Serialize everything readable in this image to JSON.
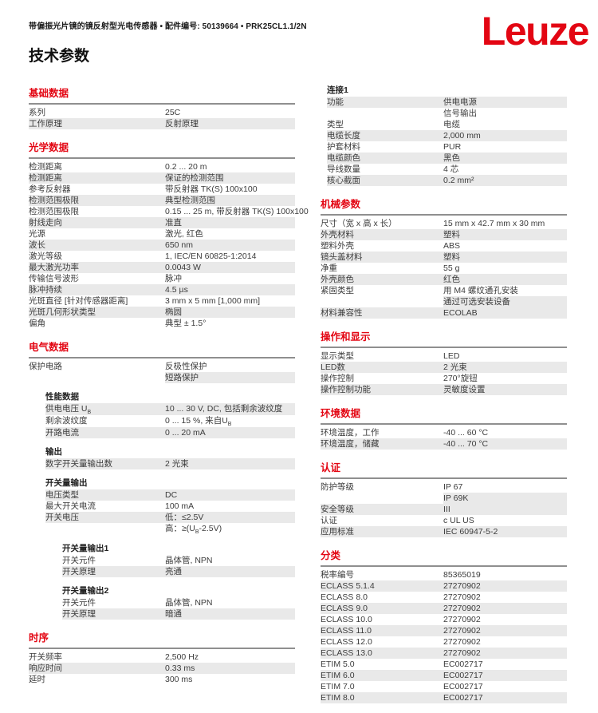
{
  "page": {
    "meta_line": "带偏振光片镜的镜反射型光电传感器 • 配件编号: 50139664 • PRK25CL1.1/2N",
    "title": "技术参数",
    "logo": "Leuze",
    "colors": {
      "brand_red": "#e30613",
      "row_shade": "#e9e9e9",
      "rule_gray": "#8f8f8f",
      "text": "#3c3c3c"
    }
  },
  "columns": {
    "left": [
      {
        "title": "基础数据",
        "rows": [
          {
            "label": "系列",
            "value": "25C",
            "shade": "none"
          },
          {
            "label": "工作原理",
            "value": "反射原理",
            "shade": "full"
          }
        ]
      },
      {
        "title": "光学数据",
        "rows": [
          {
            "label": "检测距离",
            "value": "0.2 ... 20 m",
            "shade": "none"
          },
          {
            "label": "检测距离",
            "value": "保证的检测范围",
            "shade": "full"
          },
          {
            "label": "参考反射器",
            "value": "带反射器 TK(S) 100x100",
            "shade": "none"
          },
          {
            "label": "检测范围极限",
            "value": "典型检测范围",
            "shade": "full"
          },
          {
            "label": "检测范围极限",
            "value": "0.15 ... 25 m, 带反射器 TK(S) 100x100",
            "shade": "none"
          },
          {
            "label": "射线走向",
            "value": "准直",
            "shade": "full"
          },
          {
            "label": "光源",
            "value": "激光, 红色",
            "shade": "none"
          },
          {
            "label": "波长",
            "value": "650 nm",
            "shade": "full"
          },
          {
            "label": "激光等级",
            "value": "1, IEC/EN 60825-1:2014",
            "shade": "none"
          },
          {
            "label": "最大激光功率",
            "value": "0.0043 W",
            "shade": "full"
          },
          {
            "label": "传输信号波形",
            "value": "脉冲",
            "shade": "none"
          },
          {
            "label": "脉冲持续",
            "value": "4.5 µs",
            "shade": "full"
          },
          {
            "label": "光斑直径 [针对传感器距离]",
            "value": "3 mm x 5 mm [1,000 mm]",
            "shade": "none"
          },
          {
            "label": "光斑几何形状类型",
            "value": "椭圆",
            "shade": "full"
          },
          {
            "label": "偏角",
            "value": "典型 ± 1.5°",
            "shade": "none"
          }
        ]
      },
      {
        "title": "电气数据",
        "rows": [
          {
            "label": "保护电路",
            "value": "反极性保护",
            "shade": "none"
          },
          {
            "label": "",
            "value": "短路保护",
            "shade": "value"
          },
          {
            "sub": "性能数据",
            "indent": 1
          },
          {
            "label": "供电电压 U~B~",
            "value": "10 ... 30 V, DC, 包括剩余波纹度",
            "shade": "full",
            "indent": 1
          },
          {
            "label": "剩余波纹度",
            "value": "0 ... 15 %, 来自U~B~",
            "shade": "none",
            "indent": 1
          },
          {
            "label": "开路电流",
            "value": "0 ... 20 mA",
            "shade": "full",
            "indent": 1
          },
          {
            "sub": "输出",
            "indent": 1
          },
          {
            "label": "数字开关量输出数",
            "value": "2 光束",
            "shade": "full",
            "indent": 1
          },
          {
            "sub": "开关量输出",
            "indent": 1
          },
          {
            "label": "电压类型",
            "value": "DC",
            "shade": "full",
            "indent": 1
          },
          {
            "label": "最大开关电流",
            "value": "100 mA",
            "shade": "none",
            "indent": 1
          },
          {
            "label": "开关电压",
            "value": "低：≤2.5V",
            "shade": "full",
            "indent": 1
          },
          {
            "label": "",
            "value": "高：≥(U~B~-2.5V)",
            "shade": "none"
          },
          {
            "sub": "开关量输出1",
            "indent": 2
          },
          {
            "label": "开关元件",
            "value": "晶体管, NPN",
            "shade": "none",
            "indent": 2
          },
          {
            "label": "开关原理",
            "value": "亮通",
            "shade": "full",
            "indent": 2
          },
          {
            "sub": "开关量输出2",
            "indent": 2
          },
          {
            "label": "开关元件",
            "value": "晶体管, NPN",
            "shade": "none",
            "indent": 2
          },
          {
            "label": "开关原理",
            "value": "暗通",
            "shade": "full",
            "indent": 2
          }
        ]
      },
      {
        "title": "时序",
        "rows": [
          {
            "label": "开关频率",
            "value": "2,500 Hz",
            "shade": "none"
          },
          {
            "label": "响应时间",
            "value": "0.33 ms",
            "shade": "full"
          },
          {
            "label": "延时",
            "value": "300 ms",
            "shade": "none"
          }
        ]
      }
    ],
    "right": [
      {
        "title": null,
        "rows": [
          {
            "sub": "连接1",
            "indent": 1
          },
          {
            "label": "功能",
            "value": "供电电源",
            "shade": "full",
            "indent": 1
          },
          {
            "label": "",
            "value": "信号输出",
            "shade": "none"
          },
          {
            "label": "类型",
            "value": "电缆",
            "shade": "none",
            "indent": 1
          },
          {
            "label": "电缆长度",
            "value": "2,000 mm",
            "shade": "full",
            "indent": 1
          },
          {
            "label": "护套材料",
            "value": "PUR",
            "shade": "none",
            "indent": 1
          },
          {
            "label": "电缆颜色",
            "value": "黑色",
            "shade": "full",
            "indent": 1
          },
          {
            "label": "导线数量",
            "value": "4 芯",
            "shade": "none",
            "indent": 1
          },
          {
            "label": "核心截面",
            "value": "0.2 mm²",
            "shade": "full",
            "indent": 1
          }
        ]
      },
      {
        "title": "机械参数",
        "rows": [
          {
            "label": "尺寸（宽 x 高 x 长）",
            "value": "15 mm x 42.7 mm x 30 mm",
            "shade": "none"
          },
          {
            "label": "外壳材料",
            "value": "塑料",
            "shade": "full"
          },
          {
            "label": "塑料外壳",
            "value": "ABS",
            "shade": "none"
          },
          {
            "label": "镜头盖材料",
            "value": "塑料",
            "shade": "full"
          },
          {
            "label": "净重",
            "value": "55 g",
            "shade": "none"
          },
          {
            "label": "外壳颜色",
            "value": "红色",
            "shade": "full"
          },
          {
            "label": "紧固类型",
            "value": "用 M4 螺纹通孔安装",
            "shade": "none"
          },
          {
            "label": "",
            "value": "通过可选安装设备",
            "shade": "value"
          },
          {
            "label": "材料兼容性",
            "value": "ECOLAB",
            "shade": "full"
          }
        ]
      },
      {
        "title": "操作和显示",
        "rows": [
          {
            "label": "显示类型",
            "value": "LED",
            "shade": "none"
          },
          {
            "label": "LED数",
            "value": "2 光束",
            "shade": "full"
          },
          {
            "label": "操作控制",
            "value": "270°旋钮",
            "shade": "none"
          },
          {
            "label": "操作控制功能",
            "value": "灵敏度设置",
            "shade": "full"
          }
        ]
      },
      {
        "title": "环境数据",
        "rows": [
          {
            "label": "环境温度，工作",
            "value": "-40 ... 60 °C",
            "shade": "none"
          },
          {
            "label": "环境温度，储藏",
            "value": "-40 ... 70 °C",
            "shade": "full"
          }
        ]
      },
      {
        "title": "认证",
        "rows": [
          {
            "label": "防护等级",
            "value": "IP 67",
            "shade": "none"
          },
          {
            "label": "",
            "value": "IP 69K",
            "shade": "value"
          },
          {
            "label": "安全等级",
            "value": "III",
            "shade": "full"
          },
          {
            "label": "认证",
            "value": "c UL US",
            "shade": "none"
          },
          {
            "label": "应用标准",
            "value": "IEC 60947-5-2",
            "shade": "full"
          }
        ]
      },
      {
        "title": "分类",
        "rows": [
          {
            "label": "税率编号",
            "value": "85365019",
            "shade": "none"
          },
          {
            "label": "ECLASS 5.1.4",
            "value": "27270902",
            "shade": "full"
          },
          {
            "label": "ECLASS 8.0",
            "value": "27270902",
            "shade": "none"
          },
          {
            "label": "ECLASS 9.0",
            "value": "27270902",
            "shade": "full"
          },
          {
            "label": "ECLASS 10.0",
            "value": "27270902",
            "shade": "none"
          },
          {
            "label": "ECLASS 11.0",
            "value": "27270902",
            "shade": "full"
          },
          {
            "label": "ECLASS 12.0",
            "value": "27270902",
            "shade": "none"
          },
          {
            "label": "ECLASS 13.0",
            "value": "27270902",
            "shade": "full"
          },
          {
            "label": "ETIM 5.0",
            "value": "EC002717",
            "shade": "none"
          },
          {
            "label": "ETIM 6.0",
            "value": "EC002717",
            "shade": "full"
          },
          {
            "label": "ETIM 7.0",
            "value": "EC002717",
            "shade": "none"
          },
          {
            "label": "ETIM 8.0",
            "value": "EC002717",
            "shade": "full"
          }
        ]
      }
    ]
  }
}
